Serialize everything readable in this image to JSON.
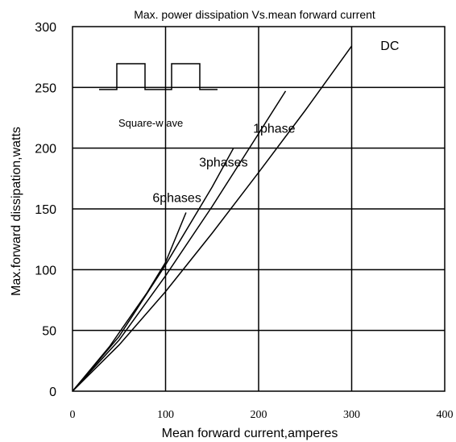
{
  "chart_data": {
    "type": "line",
    "title": "Max. power dissipation  Vs.mean  forward  current",
    "xlabel": "Mean forward  current,amperes",
    "ylabel": "Max.forward dissipation,watts",
    "xlim": [
      0,
      400
    ],
    "ylim": [
      0,
      300
    ],
    "xticks": [
      "0",
      "100",
      "200",
      "300",
      "400"
    ],
    "yticks": [
      "0",
      "50",
      "100",
      "150",
      "200",
      "250",
      "300"
    ],
    "grid": true,
    "inset_label": "Square-w ave",
    "series": [
      {
        "name": "DC",
        "label_at": [
          331,
          284
        ],
        "points": [
          [
            0,
            0
          ],
          [
            50,
            38
          ],
          [
            100,
            82
          ],
          [
            150,
            130
          ],
          [
            200,
            180
          ],
          [
            250,
            231
          ],
          [
            300,
            284
          ]
        ]
      },
      {
        "name": "1phase",
        "label_at": [
          194,
          216
        ],
        "points": [
          [
            0,
            0
          ],
          [
            50,
            42
          ],
          [
            100,
            95
          ],
          [
            150,
            152
          ],
          [
            200,
            212
          ],
          [
            229,
            247
          ]
        ]
      },
      {
        "name": "3phases",
        "label_at": [
          136,
          188
        ],
        "points": [
          [
            0,
            0
          ],
          [
            50,
            45
          ],
          [
            100,
            104
          ],
          [
            150,
            168
          ],
          [
            173,
            200
          ]
        ]
      },
      {
        "name": "6phases",
        "label_at": [
          86,
          159
        ],
        "points": [
          [
            0,
            0
          ],
          [
            40,
            37
          ],
          [
            80,
            81
          ],
          [
            100,
            106
          ],
          [
            122,
            147
          ]
        ]
      }
    ]
  }
}
